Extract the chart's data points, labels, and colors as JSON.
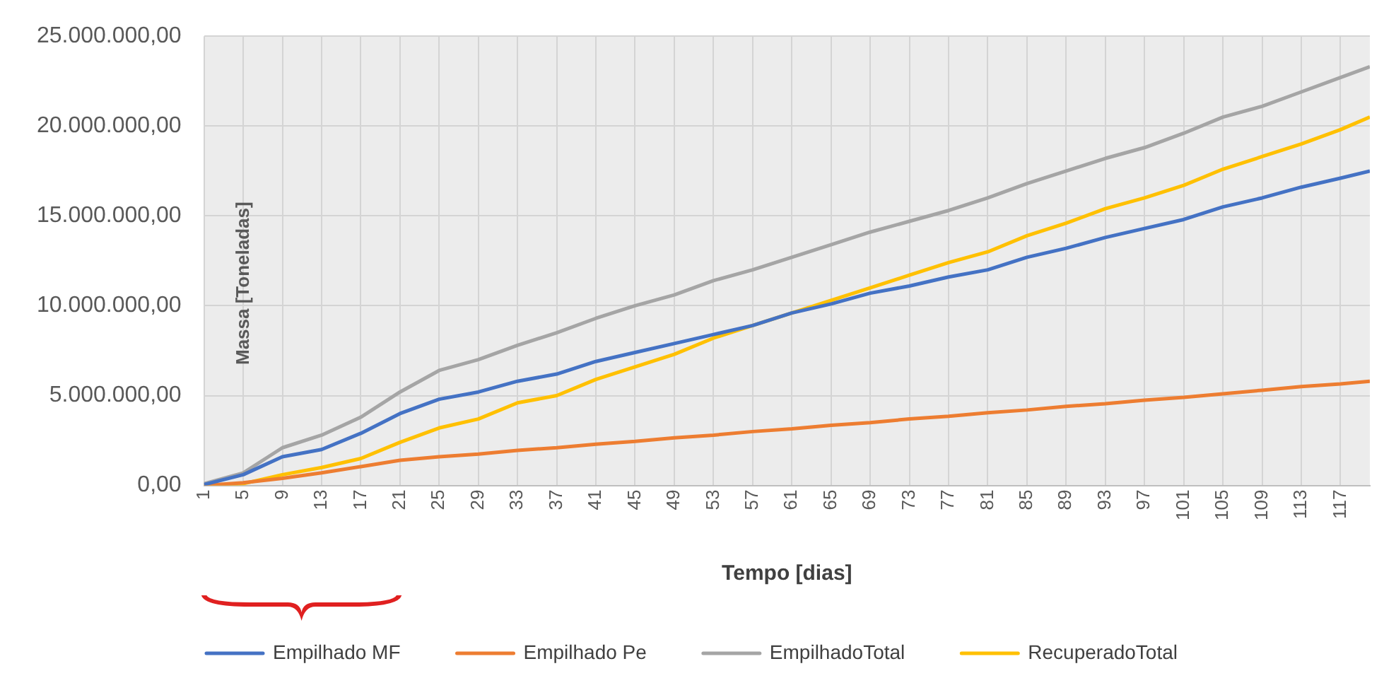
{
  "chart_data": {
    "type": "line",
    "xlabel": "Tempo [dias]",
    "ylabel": "Massa [Toneladas]",
    "x": [
      1,
      5,
      9,
      13,
      17,
      21,
      25,
      29,
      33,
      37,
      41,
      45,
      49,
      53,
      57,
      61,
      65,
      69,
      73,
      77,
      81,
      85,
      89,
      93,
      97,
      101,
      105,
      109,
      113,
      117,
      120
    ],
    "series": [
      {
        "name": "Empilhado MF",
        "color": "#4472c4",
        "values": [
          50000,
          600000,
          1600000,
          2000000,
          2900000,
          4000000,
          4800000,
          5200000,
          5800000,
          6200000,
          6900000,
          7400000,
          7900000,
          8400000,
          8900000,
          9600000,
          10100000,
          10700000,
          11100000,
          11600000,
          12000000,
          12700000,
          13200000,
          13800000,
          14300000,
          14800000,
          15500000,
          16000000,
          16600000,
          17100000,
          17500000
        ]
      },
      {
        "name": "Empilhado Pe",
        "color": "#ed7d31",
        "values": [
          0,
          150000,
          400000,
          700000,
          1050000,
          1400000,
          1600000,
          1750000,
          1950000,
          2100000,
          2300000,
          2450000,
          2650000,
          2800000,
          3000000,
          3150000,
          3350000,
          3500000,
          3700000,
          3850000,
          4050000,
          4200000,
          4400000,
          4550000,
          4750000,
          4900000,
          5100000,
          5300000,
          5500000,
          5650000,
          5800000
        ]
      },
      {
        "name": "EmpilhadoTotal",
        "color": "#a5a5a5",
        "values": [
          100000,
          700000,
          2100000,
          2800000,
          3800000,
          5200000,
          6400000,
          7000000,
          7800000,
          8500000,
          9300000,
          10000000,
          10600000,
          11400000,
          12000000,
          12700000,
          13400000,
          14100000,
          14700000,
          15300000,
          16000000,
          16800000,
          17500000,
          18200000,
          18800000,
          19600000,
          20500000,
          21100000,
          21900000,
          22700000,
          23300000
        ]
      },
      {
        "name": "RecuperadoTotal",
        "color": "#ffc000",
        "values": [
          0,
          100000,
          600000,
          1000000,
          1500000,
          2400000,
          3200000,
          3700000,
          4600000,
          5000000,
          5900000,
          6600000,
          7300000,
          8200000,
          8900000,
          9600000,
          10300000,
          11000000,
          11700000,
          12400000,
          13000000,
          13900000,
          14600000,
          15400000,
          16000000,
          16700000,
          17600000,
          18300000,
          19000000,
          19800000,
          20500000
        ]
      }
    ],
    "xlim": [
      1,
      120
    ],
    "xticks": [
      1,
      5,
      9,
      13,
      17,
      21,
      25,
      29,
      33,
      37,
      41,
      45,
      49,
      53,
      57,
      61,
      65,
      69,
      73,
      77,
      81,
      85,
      89,
      93,
      97,
      101,
      105,
      109,
      113,
      117
    ],
    "ylim": [
      0,
      25000000
    ],
    "yticks": [
      {
        "value": 0,
        "label": "0,00"
      },
      {
        "value": 5000000,
        "label": "5.000.000,00"
      },
      {
        "value": 10000000,
        "label": "10.000.000,00"
      },
      {
        "value": 15000000,
        "label": "15.000.000,00"
      },
      {
        "value": 20000000,
        "label": "20.000.000,00"
      },
      {
        "value": 25000000,
        "label": "25.000.000,00"
      }
    ],
    "grid": true,
    "legend": "bottom",
    "marker": "none",
    "line_style": "solid"
  }
}
